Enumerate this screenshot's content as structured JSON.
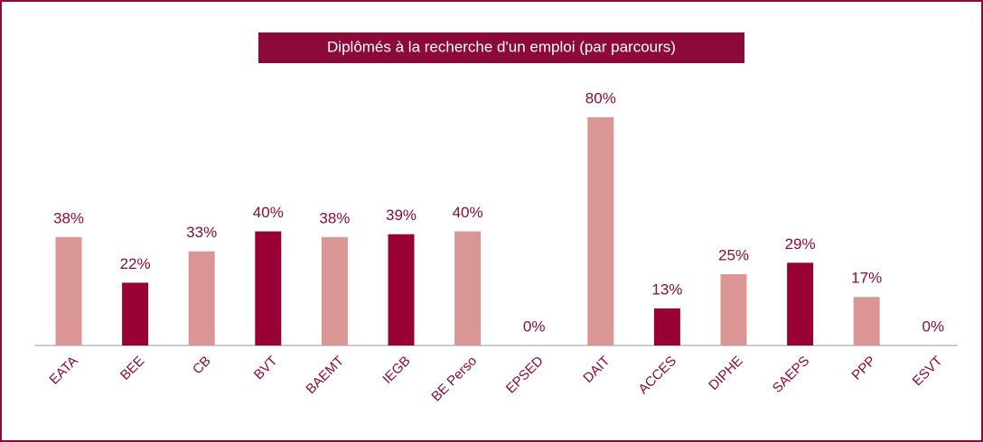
{
  "chart_data": {
    "type": "bar",
    "title": "Diplômés à la recherche d'un emploi (par parcours)",
    "categories": [
      "EATA",
      "BEE",
      "CB",
      "BVT",
      "BAEMT",
      "IEGB",
      "BE Perso",
      "EPSED",
      "DAIT",
      "ACCES",
      "DIPHE",
      "SAEPS",
      "PPP",
      "ESVT"
    ],
    "values": [
      38,
      22,
      33,
      40,
      38,
      39,
      40,
      0,
      80,
      13,
      25,
      29,
      17,
      0
    ],
    "value_labels": [
      "38%",
      "22%",
      "33%",
      "40%",
      "38%",
      "39%",
      "40%",
      "0%",
      "80%",
      "13%",
      "25%",
      "29%",
      "17%",
      "0%"
    ],
    "colors": [
      "#d99694",
      "#990033",
      "#d99694",
      "#990033",
      "#d99694",
      "#990033",
      "#d99694",
      "#d99694",
      "#d99694",
      "#990033",
      "#d99694",
      "#990033",
      "#d99694",
      "#d99694"
    ]
  }
}
